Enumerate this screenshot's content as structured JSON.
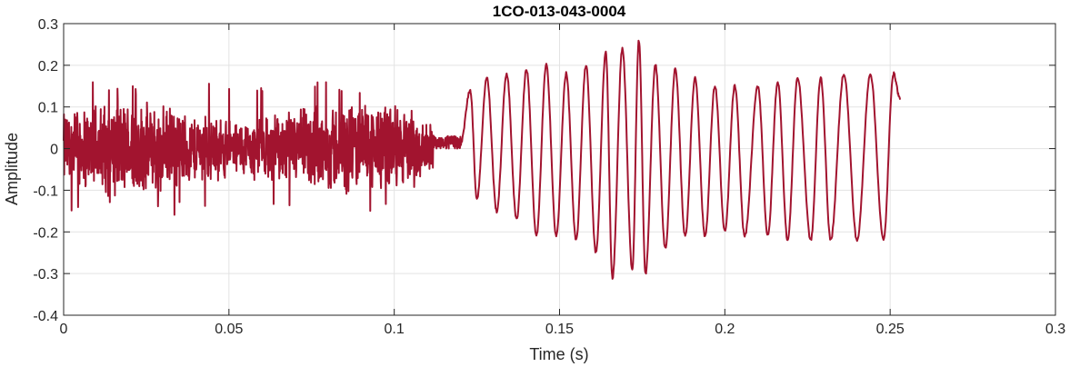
{
  "chart_data": {
    "type": "line",
    "title": "1CO-013-043-0004",
    "xlabel": "Time (s)",
    "ylabel": "Amplitude",
    "xlim": [
      0,
      0.3
    ],
    "ylim": [
      -0.4,
      0.3
    ],
    "x_ticks": [
      "0",
      "0.05",
      "0.1",
      "0.15",
      "0.2",
      "0.25",
      "0.3"
    ],
    "y_ticks": [
      "-0.4",
      "-0.3",
      "-0.2",
      "-0.1",
      "0",
      "0.1",
      "0.2",
      "0.3"
    ],
    "grid": true,
    "series": [
      {
        "color": "#A2142F",
        "noise_segment": {
          "x_range": [
            0,
            0.12
          ],
          "peak_amplitude": [
            0.16,
            0.15
          ]
        },
        "oscillation_peaks": [
          {
            "x": 0.123,
            "y": 0.14
          },
          {
            "x": 0.125,
            "y": -0.12
          },
          {
            "x": 0.128,
            "y": 0.17
          },
          {
            "x": 0.131,
            "y": -0.15
          },
          {
            "x": 0.134,
            "y": 0.18
          },
          {
            "x": 0.137,
            "y": -0.17
          },
          {
            "x": 0.14,
            "y": 0.19
          },
          {
            "x": 0.143,
            "y": -0.21
          },
          {
            "x": 0.146,
            "y": 0.2
          },
          {
            "x": 0.149,
            "y": -0.21
          },
          {
            "x": 0.152,
            "y": 0.18
          },
          {
            "x": 0.155,
            "y": -0.22
          },
          {
            "x": 0.158,
            "y": 0.2
          },
          {
            "x": 0.161,
            "y": -0.25
          },
          {
            "x": 0.164,
            "y": 0.23
          },
          {
            "x": 0.166,
            "y": -0.31
          },
          {
            "x": 0.169,
            "y": 0.24
          },
          {
            "x": 0.172,
            "y": -0.29
          },
          {
            "x": 0.174,
            "y": 0.26
          },
          {
            "x": 0.176,
            "y": -0.3
          },
          {
            "x": 0.179,
            "y": 0.2
          },
          {
            "x": 0.182,
            "y": -0.24
          },
          {
            "x": 0.185,
            "y": 0.19
          },
          {
            "x": 0.188,
            "y": -0.21
          },
          {
            "x": 0.191,
            "y": 0.17
          },
          {
            "x": 0.194,
            "y": -0.21
          },
          {
            "x": 0.197,
            "y": 0.15
          },
          {
            "x": 0.2,
            "y": -0.2
          },
          {
            "x": 0.203,
            "y": 0.15
          },
          {
            "x": 0.206,
            "y": -0.21
          },
          {
            "x": 0.21,
            "y": 0.15
          },
          {
            "x": 0.213,
            "y": -0.21
          },
          {
            "x": 0.216,
            "y": 0.16
          },
          {
            "x": 0.219,
            "y": -0.22
          },
          {
            "x": 0.222,
            "y": 0.17
          },
          {
            "x": 0.226,
            "y": -0.22
          },
          {
            "x": 0.229,
            "y": 0.17
          },
          {
            "x": 0.232,
            "y": -0.22
          },
          {
            "x": 0.236,
            "y": 0.18
          },
          {
            "x": 0.24,
            "y": -0.22
          },
          {
            "x": 0.244,
            "y": 0.18
          },
          {
            "x": 0.248,
            "y": -0.22
          },
          {
            "x": 0.251,
            "y": 0.18
          },
          {
            "x": 0.253,
            "y": 0.12
          }
        ]
      }
    ]
  }
}
